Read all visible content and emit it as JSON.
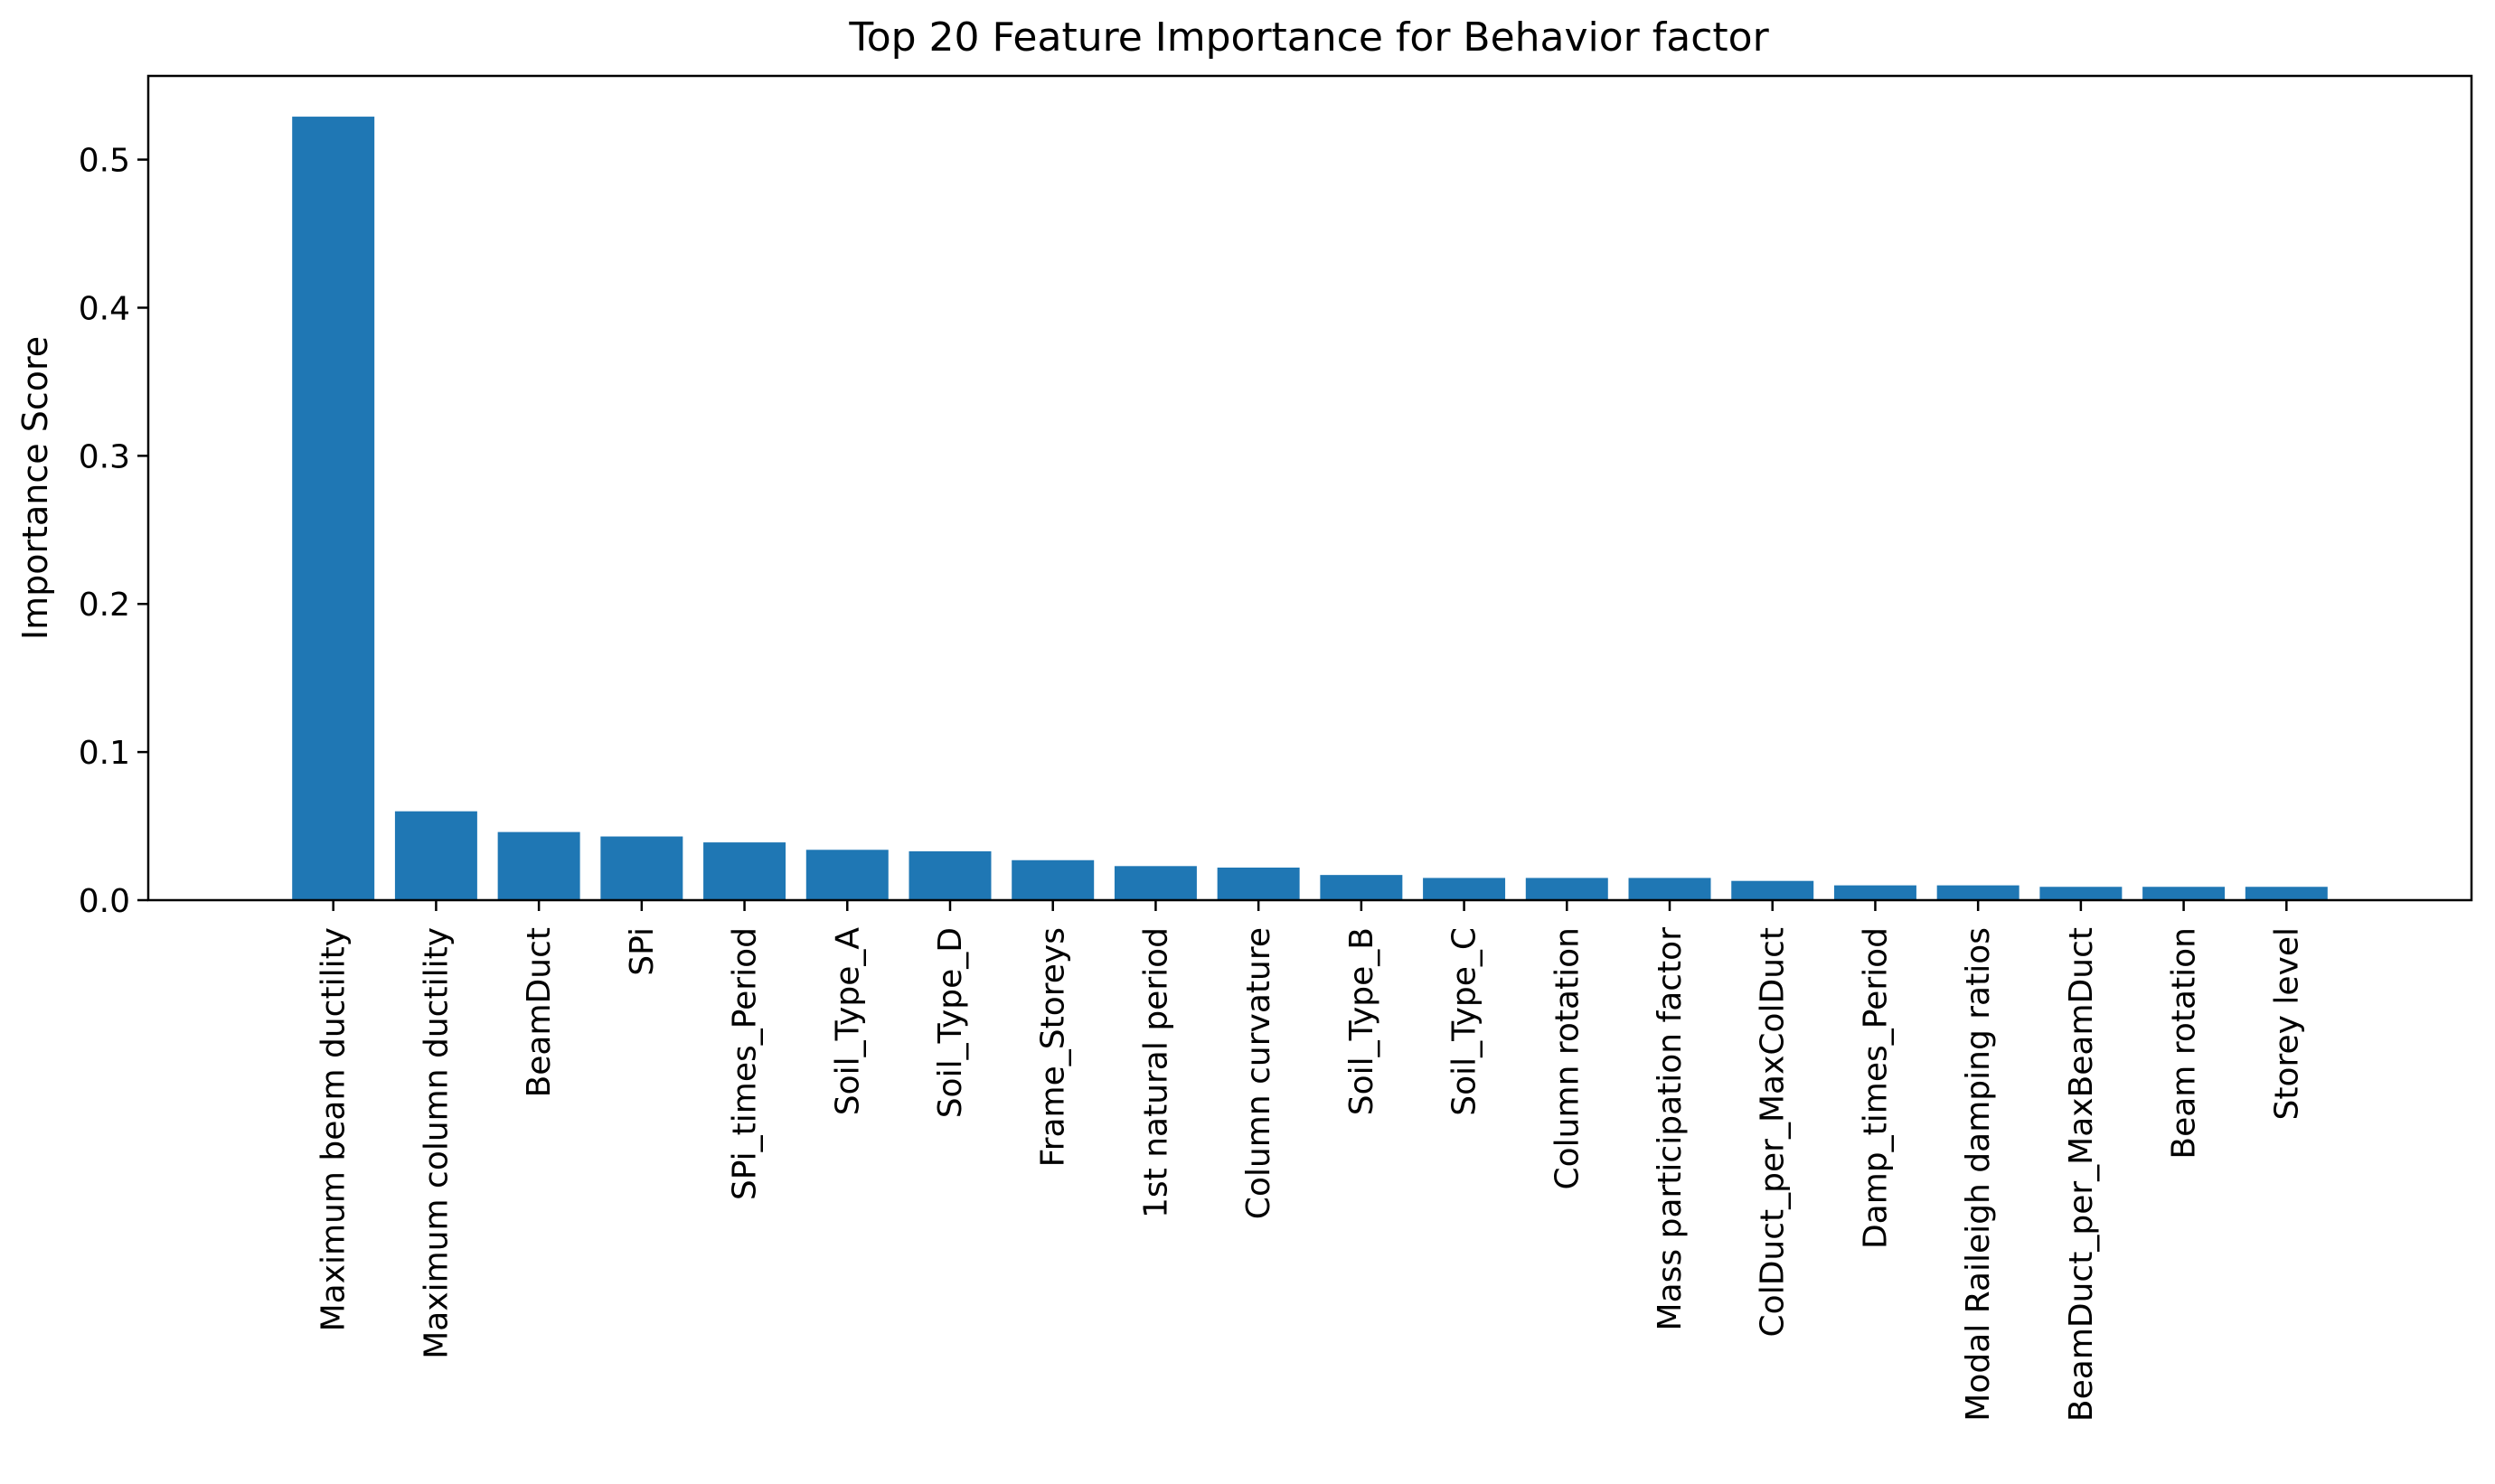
{
  "chart_data": {
    "type": "bar",
    "title": "Top 20 Feature Importance for Behavior factor",
    "xlabel": "",
    "ylabel": "Importance Score",
    "ylim": [
      0,
      0.5565
    ],
    "yticks": [
      0.0,
      0.1,
      0.2,
      0.3,
      0.4,
      0.5
    ],
    "ytick_labels": [
      "0.0",
      "0.1",
      "0.2",
      "0.3",
      "0.4",
      "0.5"
    ],
    "bar_color": "#1f77b4",
    "grid": false,
    "legend": false,
    "categories": [
      "Maximum beam ductility",
      "Maximum column ductility",
      "BeamDuct",
      "SPi",
      "SPi_times_Period",
      "Soil_Type_A",
      "Soil_Type_D",
      "Frame_Storeys",
      "1st natural period",
      "Column curvature",
      "Soil_Type_B",
      "Soil_Type_C",
      "Column rotation",
      "Mass participation factor",
      "ColDuct_per_MaxColDuct",
      "Damp_times_Period",
      "Modal Raileigh damping ratios",
      "BeamDuct_per_MaxBeamDuct",
      "Beam rotation",
      "Storey level"
    ],
    "values": [
      0.529,
      0.06,
      0.046,
      0.043,
      0.039,
      0.034,
      0.033,
      0.027,
      0.023,
      0.022,
      0.017,
      0.015,
      0.015,
      0.015,
      0.013,
      0.01,
      0.01,
      0.009,
      0.009,
      0.009
    ]
  }
}
